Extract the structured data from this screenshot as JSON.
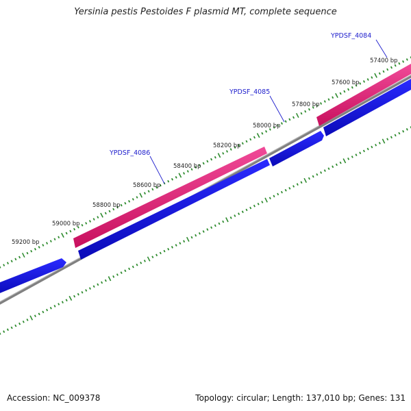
{
  "title": "Yersinia pestis Pestoides F plasmid MT, complete sequence",
  "footer": {
    "accession": "Accession: NC_009378",
    "summary": "Topology: circular; Length: 137,010 bp; Genes: 131"
  },
  "ruler": {
    "tick_color": "#2e8b2e",
    "labels": [
      "57400 bp",
      "57600 bp",
      "57800 bp",
      "58000 bp",
      "58200 bp",
      "58400 bp",
      "58600 bp",
      "58800 bp",
      "59000 bp",
      "59200 bp"
    ]
  },
  "genes": [
    {
      "name": "YPDSF_4084"
    },
    {
      "name": "YPDSF_4085"
    },
    {
      "name": "YPDSF_4086"
    }
  ],
  "colors": {
    "forward_strand": "#e8207a",
    "reverse_strand": "#1a1add",
    "backbone": "#808080",
    "gene_label": "#1c1ccc"
  }
}
